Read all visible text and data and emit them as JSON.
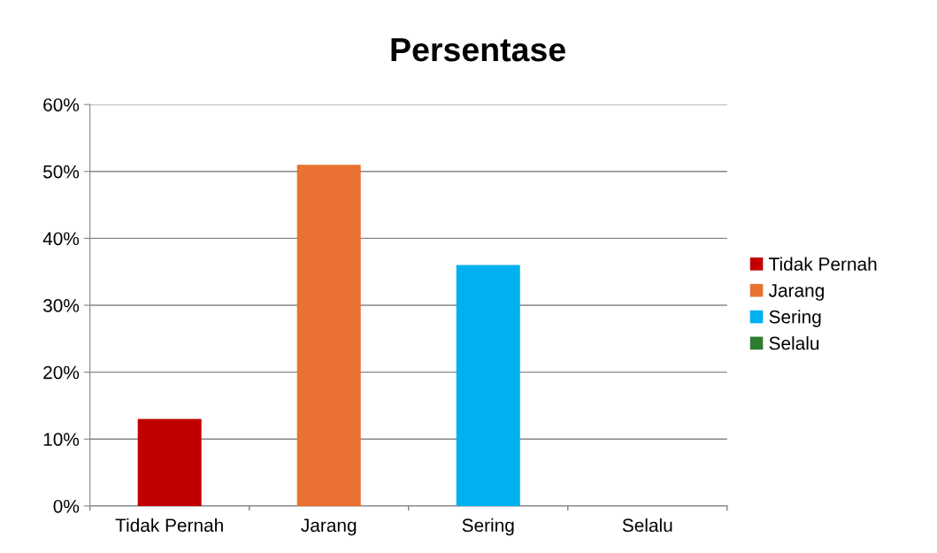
{
  "chart_data": {
    "type": "bar",
    "title": "Persentase",
    "categories": [
      "Tidak Pernah",
      "Jarang",
      "Sering",
      "Selalu"
    ],
    "series": [
      {
        "name": "Tidak Pernah",
        "color": "#c00000",
        "values": [
          13,
          null,
          null,
          null
        ]
      },
      {
        "name": "Jarang",
        "color": "#e97132",
        "values": [
          null,
          51,
          null,
          null
        ]
      },
      {
        "name": "Sering",
        "color": "#00b0f0",
        "values": [
          null,
          null,
          36,
          null
        ]
      },
      {
        "name": "Selalu",
        "color": "#2e7d32",
        "values": [
          null,
          null,
          null,
          0
        ]
      }
    ],
    "ylim": [
      0,
      60
    ],
    "yticks": [
      {
        "value": 0,
        "label": "0%"
      },
      {
        "value": 10,
        "label": "10%"
      },
      {
        "value": 20,
        "label": "20%"
      },
      {
        "value": 30,
        "label": "30%"
      },
      {
        "value": 40,
        "label": "40%"
      },
      {
        "value": 50,
        "label": "50%"
      },
      {
        "value": 60,
        "label": "60%"
      }
    ],
    "grid": "y",
    "legend": "right"
  }
}
